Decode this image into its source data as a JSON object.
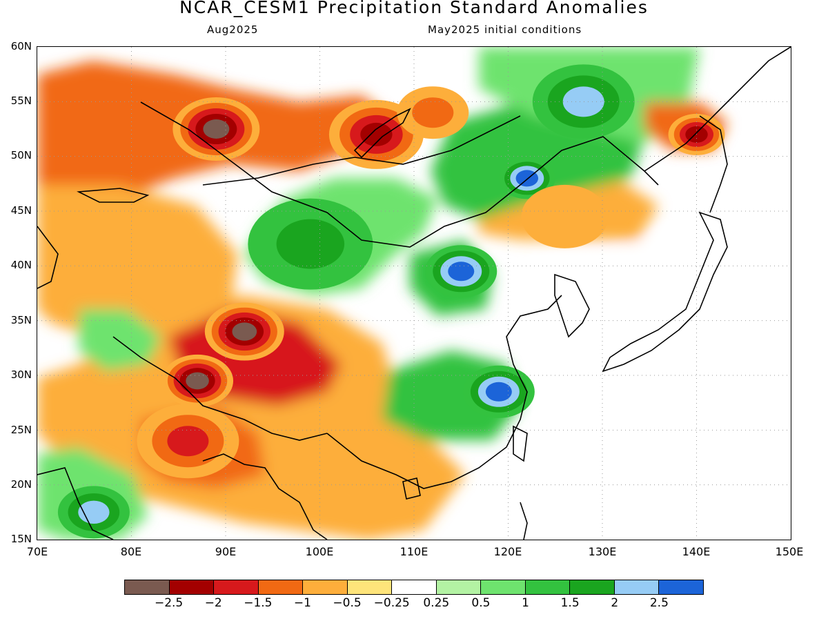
{
  "title": "NCAR_CESM1 Precipitation Standard Anomalies",
  "subtitle_left": "Aug2025",
  "subtitle_right": "May2025 initial conditions",
  "lat_labels": [
    "60N",
    "55N",
    "50N",
    "45N",
    "40N",
    "35N",
    "30N",
    "25N",
    "20N",
    "15N"
  ],
  "lon_labels": [
    "70E",
    "80E",
    "90E",
    "100E",
    "110E",
    "120E",
    "130E",
    "140E",
    "150E"
  ],
  "map_extent": {
    "lon_min": 70,
    "lon_max": 150,
    "lat_min": 15,
    "lat_max": 60
  },
  "colorbar": {
    "colors": [
      "#7a5a50",
      "#a30000",
      "#d7191c",
      "#f16913",
      "#fdae3b",
      "#fee47a",
      "#ffffff",
      "#b3f2a3",
      "#6ee36e",
      "#33c23f",
      "#1aa51f",
      "#96ccf5",
      "#1c64d8"
    ],
    "labels": [
      "−2.5",
      "−2",
      "−1.5",
      "−1",
      "−0.5",
      "−0.25",
      "0.25",
      "0.5",
      "1",
      "1.5",
      "2",
      "2.5"
    ]
  },
  "anomaly_regions": [
    {
      "lon": 89,
      "lat": 52.5,
      "level": -3,
      "size": 1.0
    },
    {
      "lon": 106,
      "lat": 52,
      "level": -2.5,
      "size": 1.1
    },
    {
      "lon": 92,
      "lat": 34,
      "level": -3,
      "size": 0.9
    },
    {
      "lon": 87,
      "lat": 29.5,
      "level": -3,
      "size": 0.8
    },
    {
      "lon": 86,
      "lat": 24,
      "level": -2,
      "size": 1.2
    },
    {
      "lon": 115,
      "lat": 39.5,
      "level": 2.5,
      "size": 0.8
    },
    {
      "lon": 119,
      "lat": 28.5,
      "level": 2.5,
      "size": 0.8
    },
    {
      "lon": 128,
      "lat": 55,
      "level": 2.3,
      "size": 1.2
    },
    {
      "lon": 122,
      "lat": 48,
      "level": 2.5,
      "size": 0.6
    },
    {
      "lon": 76,
      "lat": 17.5,
      "level": 2.3,
      "size": 0.8
    },
    {
      "lon": 99,
      "lat": 42,
      "level": 1.6,
      "size": 1.5
    },
    {
      "lon": 140,
      "lat": 52,
      "level": -2.5,
      "size": 0.6
    },
    {
      "lon": 126,
      "lat": 44.5,
      "level": -1.3,
      "size": 1.0
    },
    {
      "lon": 112,
      "lat": 54,
      "level": -1.8,
      "size": 0.8
    }
  ]
}
